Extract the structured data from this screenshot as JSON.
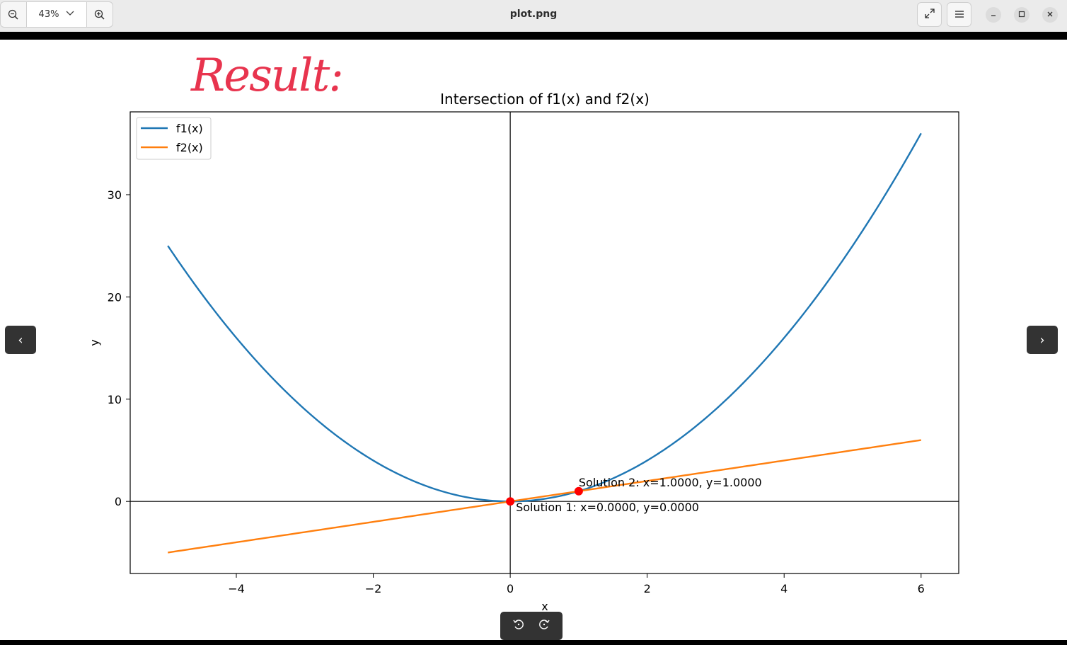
{
  "app": {
    "window_title": "plot.png",
    "zoom_level": "43%",
    "icons": {
      "zoom_out": "zoom-out-icon",
      "zoom_in": "zoom-in-icon",
      "fullscreen": "fullscreen-icon",
      "menu": "hamburger-menu-icon",
      "minimize": "minimize-icon",
      "maximize": "maximize-icon",
      "close": "close-icon",
      "prev": "chevron-left-icon",
      "next": "chevron-right-icon",
      "rotate_left": "rotate-left-icon",
      "rotate_right": "rotate-right-icon"
    },
    "nav": {
      "prev_label": "‹",
      "next_label": "›"
    }
  },
  "image": {
    "handwritten_note": "Result:",
    "note_color": "#e8344e"
  },
  "chart_data": {
    "type": "line",
    "title": "Intersection of f1(x) and f2(x)",
    "xlabel": "x",
    "ylabel": "y",
    "xlim": [
      -5.55,
      6.55
    ],
    "ylim": [
      -7.05,
      38.1
    ],
    "xticks": [
      -4,
      -2,
      0,
      2,
      4,
      6
    ],
    "xtick_labels": [
      "−4",
      "−2",
      "0",
      "2",
      "4",
      "6"
    ],
    "yticks": [
      0,
      10,
      20,
      30
    ],
    "ytick_labels": [
      "0",
      "10",
      "20",
      "30"
    ],
    "grid": false,
    "legend_position": "top-left",
    "series": [
      {
        "name": "f1(x)",
        "expression": "x^2",
        "x_range": [
          -5,
          6
        ],
        "color": "#1f77b4"
      },
      {
        "name": "f2(x)",
        "expression": "x",
        "x_range": [
          -5,
          6
        ],
        "color": "#ff7f0e"
      }
    ],
    "points": [
      {
        "x": 0,
        "y": 0,
        "label": "Solution 1: x=0.0000, y=0.0000",
        "color": "#ff0000"
      },
      {
        "x": 1,
        "y": 1,
        "label": "Solution 2: x=1.0000, y=1.0000",
        "color": "#ff0000"
      }
    ],
    "reference_lines": {
      "x": 0,
      "y": 0
    }
  }
}
